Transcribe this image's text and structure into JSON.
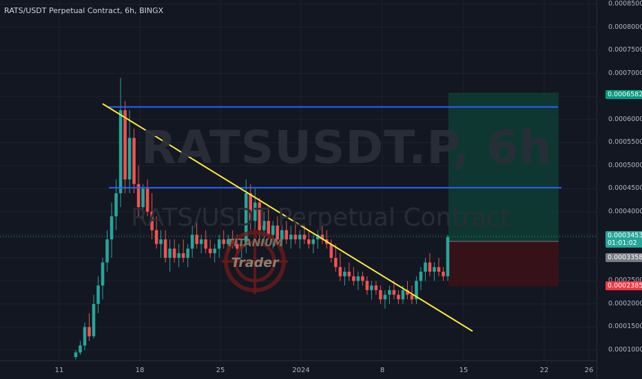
{
  "header": {
    "title": "RATS/USDT Perpetual Contract, 6h, BINGX"
  },
  "watermark": {
    "symbol": "RATSUSDT.P, 6h",
    "description": "RATS/USDT Perpetual Contract"
  },
  "logo": {
    "line1": "TITANIUM",
    "line2": "Trader"
  },
  "colors": {
    "background": "#131722",
    "up": "#26a69a",
    "down": "#ef5350",
    "level_line": "#2962ff",
    "trendline": "#ffeb3b",
    "target_zone": "#0f3d34",
    "stop_zone": "#3b1217"
  },
  "chart_data": {
    "type": "candlestick",
    "title": "RATS/USDT Perpetual Contract, 6h, BINGX",
    "x_ticks": [
      "11",
      "18",
      "25",
      "2024",
      "8",
      "15",
      "22",
      "26"
    ],
    "y_ticks": [
      "0.0008500",
      "0.0008000",
      "0.0007500",
      "0.0007000",
      "0.0006500",
      "0.0006000",
      "0.0005500",
      "0.0005000",
      "0.0004500",
      "0.0004000",
      "0.0003500",
      "0.0003000",
      "0.0002500",
      "0.0002000",
      "0.0001500",
      "0.0001000"
    ],
    "price_tags": [
      {
        "label": "0.0006582",
        "kind": "target",
        "color": "#089981"
      },
      {
        "label": "0.0003453",
        "sub": "01:01:02",
        "kind": "last",
        "color": "#26a69a"
      },
      {
        "label": "0.0003358",
        "kind": "entry",
        "color": "#787b86"
      },
      {
        "label": "0.0002385",
        "kind": "stop",
        "color": "#f23645"
      }
    ],
    "horizontal_levels": [
      0.000627,
      0.000452
    ],
    "trendline": {
      "from": {
        "x": "Dec 15",
        "y": 0.000634
      },
      "to": {
        "x": "Jan 16",
        "y": 0.000141
      }
    },
    "position": {
      "entry": 0.0003358,
      "target": 0.0006582,
      "stop": 0.0002385
    },
    "candles_approx": [
      [
        8.5e-05,
        0.0001,
        8e-05,
        9.5e-05
      ],
      [
        9.5e-05,
        0.00012,
        9e-05,
        0.00011
      ],
      [
        0.00011,
        0.00016,
        0.0001,
        0.00015
      ],
      [
        0.00015,
        0.00018,
        0.00012,
        0.00013
      ],
      [
        0.00013,
        0.00022,
        0.000125,
        0.0002
      ],
      [
        0.0002,
        0.00026,
        0.00018,
        0.00024
      ],
      [
        0.00024,
        0.0003,
        0.00021,
        0.00029
      ],
      [
        0.00029,
        0.00036,
        0.00027,
        0.00034
      ],
      [
        0.00034,
        0.00042,
        0.0003,
        0.00039
      ],
      [
        0.00039,
        0.00047,
        0.00036,
        0.00044
      ],
      [
        0.00044,
        0.00069,
        0.00041,
        0.00062
      ],
      [
        0.00062,
        0.00064,
        0.00044,
        0.00047
      ],
      [
        0.00047,
        0.00062,
        0.00044,
        0.00056
      ],
      [
        0.00056,
        0.00058,
        0.00044,
        0.00046
      ],
      [
        0.00046,
        0.0005,
        0.00039,
        0.00041
      ],
      [
        0.00041,
        0.00046,
        0.00038,
        0.00045
      ],
      [
        0.00045,
        0.00047,
        0.00039,
        0.0004
      ],
      [
        0.0004,
        0.00044,
        0.00034,
        0.00036
      ],
      [
        0.00036,
        0.00039,
        0.00032,
        0.00033
      ],
      [
        0.00033,
        0.00036,
        0.0003,
        0.00034
      ],
      [
        0.00034,
        0.00036,
        0.00029,
        0.0003
      ],
      [
        0.0003,
        0.00034,
        0.00027,
        0.00032
      ],
      [
        0.00032,
        0.00034,
        0.00029,
        0.0003
      ],
      [
        0.0003,
        0.00033,
        0.00028,
        0.00031
      ],
      [
        0.00031,
        0.00034,
        0.00029,
        0.0003
      ],
      [
        0.0003,
        0.00033,
        0.00028,
        0.00032
      ],
      [
        0.00032,
        0.00037,
        0.0003,
        0.00035
      ],
      [
        0.00035,
        0.00038,
        0.00032,
        0.00033
      ],
      [
        0.00033,
        0.00035,
        0.00031,
        0.00034
      ],
      [
        0.00034,
        0.00036,
        0.00031,
        0.00032
      ],
      [
        0.00032,
        0.00034,
        0.0003,
        0.00031
      ],
      [
        0.00031,
        0.00033,
        0.00029,
        0.00032
      ],
      [
        0.00032,
        0.00035,
        0.0003,
        0.00034
      ],
      [
        0.00034,
        0.00036,
        0.00032,
        0.00033
      ],
      [
        0.00033,
        0.00035,
        0.00031,
        0.00034
      ],
      [
        0.00034,
        0.00036,
        0.00032,
        0.00033
      ],
      [
        0.00033,
        0.00035,
        0.00031,
        0.00032
      ],
      [
        0.00032,
        0.00034,
        0.0003,
        0.00033
      ],
      [
        0.00033,
        0.00047,
        0.00031,
        0.00044
      ],
      [
        0.00044,
        0.00046,
        0.00036,
        0.00038
      ],
      [
        0.00038,
        0.00045,
        0.00036,
        0.00042
      ],
      [
        0.00042,
        0.00043,
        0.00034,
        0.00036
      ],
      [
        0.00036,
        0.0004,
        0.00033,
        0.00038
      ],
      [
        0.00038,
        0.00041,
        0.00034,
        0.00035
      ],
      [
        0.00035,
        0.00038,
        0.00032,
        0.00037
      ],
      [
        0.00037,
        0.00039,
        0.00033,
        0.00034
      ],
      [
        0.00034,
        0.00037,
        0.00032,
        0.00036
      ],
      [
        0.00036,
        0.00038,
        0.00033,
        0.00034
      ],
      [
        0.00034,
        0.00037,
        0.00032,
        0.00035
      ],
      [
        0.00035,
        0.00038,
        0.00033,
        0.00034
      ],
      [
        0.00034,
        0.00036,
        0.00032,
        0.00035
      ],
      [
        0.00035,
        0.00037,
        0.00033,
        0.00034
      ],
      [
        0.00034,
        0.00036,
        0.00032,
        0.00033
      ],
      [
        0.00033,
        0.00035,
        0.00031,
        0.00034
      ],
      [
        0.00034,
        0.00036,
        0.00032,
        0.00035
      ],
      [
        0.00035,
        0.00037,
        0.00033,
        0.00034
      ],
      [
        0.00034,
        0.00036,
        0.00032,
        0.00033
      ],
      [
        0.00033,
        0.00034,
        0.00029,
        0.0003
      ],
      [
        0.0003,
        0.00033,
        0.00027,
        0.00028
      ],
      [
        0.00028,
        0.00031,
        0.00025,
        0.00026
      ],
      [
        0.00026,
        0.00028,
        0.00024,
        0.00027
      ],
      [
        0.00027,
        0.00029,
        0.00025,
        0.00026
      ],
      [
        0.00026,
        0.00028,
        0.00024,
        0.00025
      ],
      [
        0.00025,
        0.00027,
        0.00023,
        0.00026
      ],
      [
        0.00026,
        0.00027,
        0.00024,
        0.00025
      ],
      [
        0.00025,
        0.00026,
        0.00022,
        0.00023
      ],
      [
        0.00023,
        0.00025,
        0.00021,
        0.00024
      ],
      [
        0.00024,
        0.00025,
        0.00022,
        0.00023
      ],
      [
        0.00023,
        0.00024,
        0.0002,
        0.00021
      ],
      [
        0.00021,
        0.00023,
        0.00019,
        0.00022
      ],
      [
        0.00022,
        0.00024,
        0.0002,
        0.00023
      ],
      [
        0.00023,
        0.00025,
        0.00021,
        0.00022
      ],
      [
        0.00022,
        0.00023,
        0.0002,
        0.00021
      ],
      [
        0.00021,
        0.00024,
        0.0002,
        0.00023
      ],
      [
        0.00023,
        0.00025,
        0.00021,
        0.00022
      ],
      [
        0.00022,
        0.00024,
        0.0002,
        0.00021
      ],
      [
        0.00021,
        0.00026,
        0.0002,
        0.00025
      ],
      [
        0.00025,
        0.00028,
        0.00023,
        0.00027
      ],
      [
        0.00027,
        0.0003,
        0.00025,
        0.00029
      ],
      [
        0.00029,
        0.00031,
        0.00026,
        0.00027
      ],
      [
        0.00027,
        0.00029,
        0.00025,
        0.00028
      ],
      [
        0.00028,
        0.0003,
        0.00026,
        0.00027
      ],
      [
        0.00027,
        0.00028,
        0.00025,
        0.00026
      ],
      [
        0.00026,
        0.00035,
        0.00025,
        0.000345
      ]
    ]
  }
}
